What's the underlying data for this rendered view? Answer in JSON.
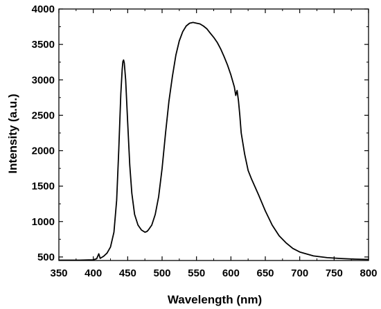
{
  "chart_data": {
    "type": "line",
    "title": "",
    "xlabel": "Wavelength (nm)",
    "ylabel": "Intensity (a.u.)",
    "xlim": [
      350,
      800
    ],
    "ylim": [
      450,
      4000
    ],
    "x_ticks": [
      350,
      400,
      450,
      500,
      550,
      600,
      650,
      700,
      750,
      800
    ],
    "y_ticks": [
      500,
      1000,
      1500,
      2000,
      2500,
      3000,
      3500,
      4000
    ],
    "grid": false,
    "legend": "none",
    "line_color": "#000000",
    "series": [
      {
        "x": [
          350,
          380,
          400,
          405,
          408,
          410,
          415,
          420,
          425,
          430,
          434,
          437,
          440,
          442,
          443,
          444,
          445,
          447,
          450,
          453,
          456,
          460,
          465,
          470,
          475,
          478,
          480,
          485,
          490,
          495,
          500,
          505,
          510,
          515,
          520,
          525,
          530,
          535,
          540,
          545,
          550,
          555,
          560,
          565,
          570,
          575,
          580,
          585,
          590,
          595,
          600,
          605,
          607,
          609,
          611,
          613,
          615,
          620,
          625,
          630,
          640,
          650,
          660,
          670,
          680,
          690,
          700,
          720,
          740,
          760,
          780,
          800
        ],
        "y": [
          455,
          455,
          460,
          475,
          545,
          480,
          510,
          555,
          640,
          850,
          1300,
          2000,
          2800,
          3150,
          3260,
          3280,
          3240,
          3000,
          2400,
          1800,
          1400,
          1100,
          950,
          880,
          850,
          860,
          880,
          950,
          1100,
          1350,
          1750,
          2250,
          2700,
          3050,
          3350,
          3550,
          3680,
          3760,
          3800,
          3810,
          3800,
          3790,
          3760,
          3720,
          3660,
          3600,
          3530,
          3440,
          3330,
          3210,
          3070,
          2900,
          2780,
          2850,
          2700,
          2500,
          2250,
          1950,
          1720,
          1600,
          1380,
          1150,
          950,
          800,
          700,
          620,
          570,
          515,
          490,
          478,
          470,
          465
        ]
      }
    ]
  }
}
